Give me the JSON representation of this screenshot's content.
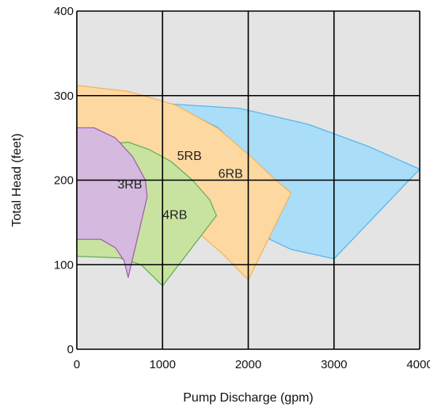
{
  "chart_data": {
    "type": "area",
    "xlabel": "Pump Discharge (gpm)",
    "ylabel": "Total Head (feet)",
    "xlim": [
      0,
      4000
    ],
    "ylim": [
      0,
      400
    ],
    "x_ticks": [
      "0",
      "1000",
      "2000",
      "3000",
      "4000"
    ],
    "y_ticks": [
      "0",
      "100",
      "200",
      "300",
      "400"
    ],
    "grid": true,
    "colors": {
      "plot_background": "#e4e4e4",
      "grid": "#000000"
    },
    "series": [
      {
        "name": "6RB",
        "fill": "#a9ddf8",
        "stroke": "#55b5e8",
        "label_at": [
          1650,
          203
        ],
        "outline": [
          [
            1100,
            290
          ],
          [
            1900,
            285
          ],
          [
            2700,
            266
          ],
          [
            3400,
            240
          ],
          [
            4000,
            213
          ],
          [
            3000,
            107
          ],
          [
            2500,
            118
          ],
          [
            2250,
            130
          ],
          [
            2050,
            220
          ],
          [
            1650,
            262
          ],
          [
            1100,
            290
          ]
        ]
      },
      {
        "name": "5RB",
        "fill": "#fdd9a1",
        "stroke": "#f2b25c",
        "label_at": [
          1170,
          224
        ],
        "outline": [
          [
            0,
            312
          ],
          [
            600,
            305
          ],
          [
            1150,
            289
          ],
          [
            1650,
            261
          ],
          [
            2050,
            226
          ],
          [
            2300,
            202
          ],
          [
            2500,
            185
          ],
          [
            2000,
            82
          ],
          [
            1700,
            113
          ],
          [
            1300,
            148
          ],
          [
            1000,
            171
          ],
          [
            700,
            193
          ],
          [
            0,
            220
          ]
        ]
      },
      {
        "name": "4RB",
        "fill": "#c8e3a0",
        "stroke": "#5fae52",
        "label_at": [
          1000,
          154
        ],
        "outline": [
          [
            400,
            243
          ],
          [
            600,
            245
          ],
          [
            850,
            236
          ],
          [
            1100,
            222
          ],
          [
            1350,
            200
          ],
          [
            1550,
            177
          ],
          [
            1630,
            158
          ],
          [
            1000,
            75
          ],
          [
            750,
            100
          ],
          [
            500,
            108
          ],
          [
            0,
            110
          ],
          [
            0,
            226
          ],
          [
            400,
            243
          ]
        ]
      },
      {
        "name": "3RB",
        "fill": "#d5b9de",
        "stroke": "#9d59ad",
        "label_at": [
          475,
          190
        ],
        "outline": [
          [
            0,
            262
          ],
          [
            200,
            262
          ],
          [
            450,
            250
          ],
          [
            650,
            228
          ],
          [
            800,
            200
          ],
          [
            820,
            180
          ],
          [
            600,
            85
          ],
          [
            550,
            105
          ],
          [
            450,
            120
          ],
          [
            280,
            130
          ],
          [
            0,
            130
          ]
        ]
      }
    ]
  }
}
